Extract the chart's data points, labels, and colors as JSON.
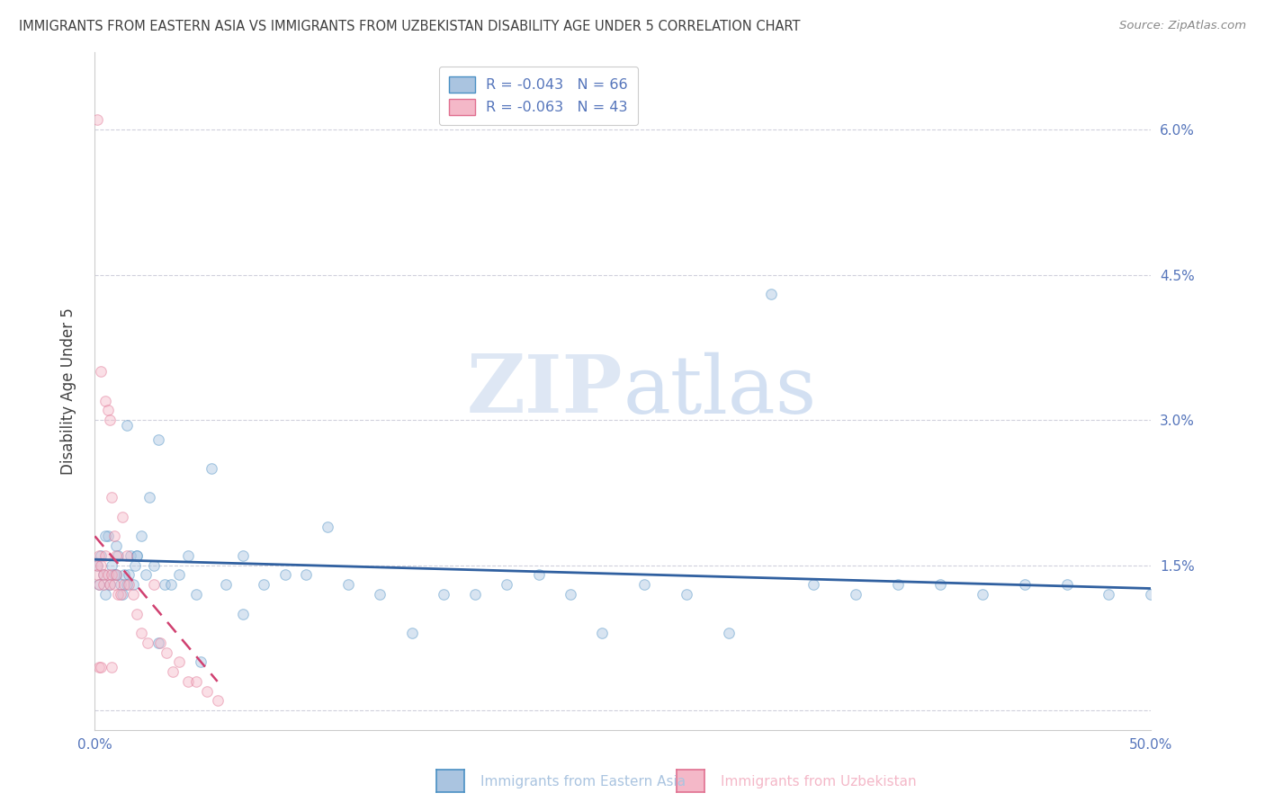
{
  "title": "IMMIGRANTS FROM EASTERN ASIA VS IMMIGRANTS FROM UZBEKISTAN DISABILITY AGE UNDER 5 CORRELATION CHART",
  "source": "Source: ZipAtlas.com",
  "ylabel": "Disability Age Under 5",
  "xlabel_blue": "Immigrants from Eastern Asia",
  "xlabel_pink": "Immigrants from Uzbekistan",
  "watermark_left": "ZIP",
  "watermark_right": "atlas",
  "legend_blue_R": "R = -0.043",
  "legend_blue_N": "N = 66",
  "legend_pink_R": "R = -0.063",
  "legend_pink_N": "N = 43",
  "xlim": [
    0.0,
    0.5
  ],
  "ylim": [
    -0.002,
    0.068
  ],
  "yticks": [
    0.0,
    0.015,
    0.03,
    0.045,
    0.06
  ],
  "ytick_labels": [
    "",
    "1.5%",
    "3.0%",
    "4.5%",
    "6.0%"
  ],
  "xticks": [
    0.0,
    0.1,
    0.2,
    0.3,
    0.4,
    0.5
  ],
  "xtick_labels": [
    "0.0%",
    "",
    "",
    "",
    "",
    "50.0%"
  ],
  "blue_color": "#aac4e0",
  "pink_color": "#f4b8c8",
  "blue_edge_color": "#4a90c4",
  "pink_edge_color": "#e07090",
  "blue_line_color": "#3060a0",
  "pink_line_color": "#d04070",
  "grid_color": "#d0d0dc",
  "title_color": "#404040",
  "axis_label_color": "#5575bb",
  "ylabel_color": "#404040",
  "source_color": "#888888",
  "blue_scatter_x": [
    0.001,
    0.002,
    0.003,
    0.004,
    0.005,
    0.006,
    0.007,
    0.008,
    0.009,
    0.01,
    0.011,
    0.012,
    0.013,
    0.014,
    0.015,
    0.016,
    0.017,
    0.018,
    0.019,
    0.02,
    0.022,
    0.024,
    0.026,
    0.028,
    0.03,
    0.033,
    0.036,
    0.04,
    0.044,
    0.048,
    0.055,
    0.062,
    0.07,
    0.08,
    0.09,
    0.1,
    0.11,
    0.12,
    0.135,
    0.15,
    0.165,
    0.18,
    0.195,
    0.21,
    0.225,
    0.24,
    0.26,
    0.28,
    0.3,
    0.32,
    0.34,
    0.36,
    0.38,
    0.4,
    0.42,
    0.44,
    0.46,
    0.48,
    0.5,
    0.005,
    0.01,
    0.015,
    0.02,
    0.03,
    0.05,
    0.07
  ],
  "blue_scatter_y": [
    0.015,
    0.013,
    0.016,
    0.014,
    0.012,
    0.018,
    0.013,
    0.015,
    0.014,
    0.017,
    0.016,
    0.013,
    0.012,
    0.014,
    0.0295,
    0.014,
    0.016,
    0.013,
    0.015,
    0.016,
    0.018,
    0.014,
    0.022,
    0.015,
    0.028,
    0.013,
    0.013,
    0.014,
    0.016,
    0.012,
    0.025,
    0.013,
    0.016,
    0.013,
    0.014,
    0.014,
    0.019,
    0.013,
    0.012,
    0.008,
    0.012,
    0.012,
    0.013,
    0.014,
    0.012,
    0.008,
    0.013,
    0.012,
    0.008,
    0.043,
    0.013,
    0.012,
    0.013,
    0.013,
    0.012,
    0.013,
    0.013,
    0.012,
    0.012,
    0.018,
    0.014,
    0.013,
    0.016,
    0.007,
    0.005,
    0.01
  ],
  "pink_scatter_x": [
    0.001,
    0.001,
    0.001,
    0.002,
    0.002,
    0.003,
    0.003,
    0.004,
    0.004,
    0.005,
    0.005,
    0.006,
    0.006,
    0.007,
    0.007,
    0.008,
    0.008,
    0.009,
    0.009,
    0.01,
    0.01,
    0.011,
    0.012,
    0.013,
    0.014,
    0.015,
    0.016,
    0.018,
    0.02,
    0.022,
    0.025,
    0.028,
    0.031,
    0.034,
    0.037,
    0.04,
    0.044,
    0.048,
    0.053,
    0.058,
    0.002,
    0.003,
    0.008
  ],
  "pink_scatter_y": [
    0.061,
    0.015,
    0.014,
    0.016,
    0.013,
    0.035,
    0.015,
    0.014,
    0.013,
    0.032,
    0.016,
    0.031,
    0.014,
    0.03,
    0.013,
    0.022,
    0.014,
    0.018,
    0.013,
    0.016,
    0.014,
    0.012,
    0.012,
    0.02,
    0.013,
    0.016,
    0.013,
    0.012,
    0.01,
    0.008,
    0.007,
    0.013,
    0.007,
    0.006,
    0.004,
    0.005,
    0.003,
    0.003,
    0.002,
    0.001,
    0.0045,
    0.0045,
    0.0045
  ],
  "blue_trend_x": [
    0.0,
    0.5
  ],
  "blue_trend_y": [
    0.0156,
    0.0126
  ],
  "pink_trend_x": [
    0.0,
    0.058
  ],
  "pink_trend_y": [
    0.018,
    0.003
  ],
  "marker_size": 70,
  "marker_alpha": 0.45,
  "marker_linewidth": 0.8
}
